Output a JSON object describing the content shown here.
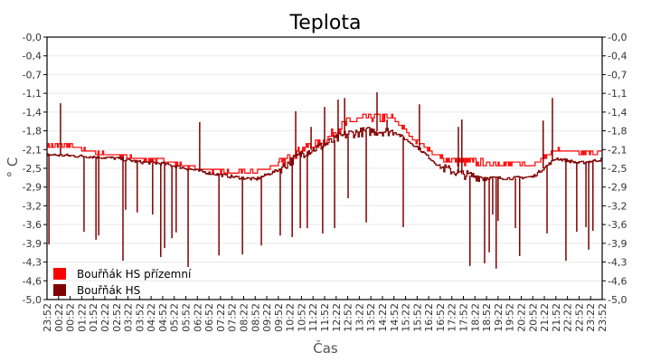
{
  "chart_data": {
    "type": "line",
    "title": "Teplota",
    "xlabel": "Čas",
    "ylabel": "° C",
    "ylim": [
      -5.0,
      0.0
    ],
    "y_ticks": [
      "-0,0",
      "-0,4",
      "-0,7",
      "-1,1",
      "-1,4",
      "-1,8",
      "-2,1",
      "-2,5",
      "-2,9",
      "-3,2",
      "-3,6",
      "-3,9",
      "-4,3",
      "-4,6",
      "-5,0"
    ],
    "x_ticks": [
      "23:52",
      "00:22",
      "00:52",
      "01:22",
      "01:52",
      "02:22",
      "02:52",
      "03:22",
      "03:52",
      "04:22",
      "04:52",
      "05:22",
      "05:52",
      "06:22",
      "06:52",
      "07:22",
      "07:52",
      "08:22",
      "08:52",
      "09:22",
      "09:52",
      "10:22",
      "10:52",
      "11:22",
      "11:52",
      "12:22",
      "12:52",
      "13:22",
      "13:52",
      "14:22",
      "14:52",
      "15:22",
      "15:52",
      "16:22",
      "16:52",
      "17:22",
      "17:52",
      "18:22",
      "18:52",
      "19:22",
      "19:52",
      "20:22",
      "20:52",
      "21:22",
      "21:52",
      "22:22",
      "22:52",
      "23:22",
      "23:52"
    ],
    "grid": true,
    "legend_position": "bottom-left",
    "x": [
      "23:52",
      "00:52",
      "01:52",
      "02:52",
      "03:52",
      "04:52",
      "05:52",
      "06:52",
      "07:52",
      "08:52",
      "09:52",
      "10:52",
      "11:52",
      "12:52",
      "13:52",
      "14:52",
      "15:52",
      "16:52",
      "17:52",
      "18:52",
      "19:52",
      "20:52",
      "21:52",
      "22:52",
      "23:52"
    ],
    "series": [
      {
        "name": "Bouřňák HS přízemní",
        "color": "#ff0000",
        "values": [
          -2.07,
          -2.07,
          -2.19,
          -2.26,
          -2.31,
          -2.36,
          -2.45,
          -2.53,
          -2.57,
          -2.57,
          -2.43,
          -2.14,
          -1.97,
          -1.62,
          -1.53,
          -1.55,
          -2.0,
          -2.3,
          -2.38,
          -2.4,
          -2.42,
          -2.42,
          -2.14,
          -2.22,
          -2.19
        ]
      },
      {
        "name": "Bouřňák HS",
        "color": "#800000",
        "values": [
          -2.24,
          -2.26,
          -2.28,
          -2.31,
          -2.38,
          -2.41,
          -2.5,
          -2.59,
          -2.66,
          -2.71,
          -2.53,
          -2.22,
          -2.05,
          -1.84,
          -1.79,
          -1.8,
          -2.1,
          -2.48,
          -2.62,
          -2.68,
          -2.69,
          -2.66,
          -2.31,
          -2.4,
          -2.33
        ],
        "spikes": [
          [
            "23:57",
            -3.95
          ],
          [
            "00:27",
            -1.26
          ],
          [
            "01:28",
            -3.71
          ],
          [
            "01:59",
            -3.86
          ],
          [
            "02:06",
            -3.78
          ],
          [
            "03:09",
            -4.26
          ],
          [
            "03:16",
            -3.29
          ],
          [
            "03:46",
            -3.34
          ],
          [
            "04:26",
            -3.38
          ],
          [
            "04:47",
            -4.19
          ],
          [
            "04:57",
            -4.02
          ],
          [
            "05:16",
            -3.83
          ],
          [
            "05:27",
            -3.72
          ],
          [
            "05:58",
            -4.38
          ],
          [
            "06:28",
            -1.62
          ],
          [
            "07:18",
            -4.16
          ],
          [
            "08:19",
            -4.14
          ],
          [
            "09:08",
            -3.97
          ],
          [
            "09:57",
            -3.78
          ],
          [
            "10:28",
            -3.81
          ],
          [
            "10:37",
            -1.41
          ],
          [
            "10:49",
            -3.64
          ],
          [
            "11:07",
            -3.64
          ],
          [
            "11:17",
            -1.71
          ],
          [
            "11:47",
            -3.74
          ],
          [
            "11:52",
            -1.33
          ],
          [
            "12:18",
            -3.64
          ],
          [
            "12:27",
            -1.19
          ],
          [
            "12:44",
            -1.16
          ],
          [
            "12:53",
            -3.07
          ],
          [
            "13:40",
            -3.53
          ],
          [
            "14:08",
            -1.05
          ],
          [
            "14:34",
            -1.57
          ],
          [
            "15:16",
            -3.62
          ],
          [
            "15:58",
            -1.28
          ],
          [
            "17:39",
            -1.71
          ],
          [
            "17:48",
            -1.57
          ],
          [
            "18:09",
            -4.36
          ],
          [
            "18:47",
            -4.31
          ],
          [
            "18:59",
            -4.1
          ],
          [
            "19:08",
            -3.38
          ],
          [
            "19:17",
            -4.41
          ],
          [
            "19:22",
            -3.5
          ],
          [
            "20:07",
            -3.64
          ],
          [
            "20:18",
            -4.17
          ],
          [
            "21:19",
            -1.59
          ],
          [
            "21:29",
            -3.74
          ],
          [
            "21:43",
            -1.16
          ],
          [
            "22:18",
            -4.26
          ],
          [
            "22:46",
            -3.71
          ],
          [
            "23:10",
            -3.62
          ],
          [
            "23:17",
            -4.05
          ],
          [
            "23:28",
            -3.69
          ]
        ]
      }
    ]
  }
}
